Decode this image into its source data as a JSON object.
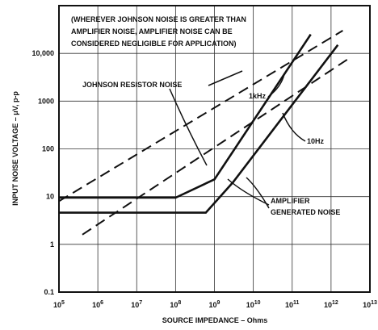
{
  "chart_data": {
    "type": "line",
    "title": "",
    "xlabel": "SOURCE IMPEDANCE – Ohms",
    "ylabel": "INPUT NOISE VOLTAGE – μV, p-p",
    "x_scale": "log",
    "y_scale": "log",
    "xlim": [
      100000,
      10000000000000
    ],
    "ylim": [
      0.1,
      100000
    ],
    "grid": true,
    "x_ticks": [
      {
        "value": 100000,
        "base": "10",
        "exp": "5"
      },
      {
        "value": 1000000,
        "base": "10",
        "exp": "6"
      },
      {
        "value": 10000000,
        "base": "10",
        "exp": "7"
      },
      {
        "value": 100000000,
        "base": "10",
        "exp": "8"
      },
      {
        "value": 1000000000,
        "base": "10",
        "exp": "9"
      },
      {
        "value": 10000000000,
        "base": "10",
        "exp": "10"
      },
      {
        "value": 100000000000,
        "base": "10",
        "exp": "11"
      },
      {
        "value": 1000000000000,
        "base": "10",
        "exp": "12"
      },
      {
        "value": 10000000000000,
        "base": "10",
        "exp": "13"
      }
    ],
    "y_ticks": [
      {
        "value": 0.1,
        "label": "0.1"
      },
      {
        "value": 1,
        "label": "1"
      },
      {
        "value": 10,
        "label": "10"
      },
      {
        "value": 100,
        "label": "100"
      },
      {
        "value": 1000,
        "label": "1000"
      },
      {
        "value": 10000,
        "label": "10,000"
      }
    ],
    "series": [
      {
        "style": "solid",
        "values_xy": [
          [
            100000,
            9.5
          ],
          [
            100000000,
            9.5
          ],
          [
            1000000000,
            23
          ],
          [
            300000000000,
            25000
          ]
        ]
      },
      {
        "style": "solid",
        "values_xy": [
          [
            100000,
            4.6
          ],
          [
            600000000,
            4.6
          ],
          [
            3000000000,
            20
          ],
          [
            1500000000000,
            15000
          ]
        ]
      },
      {
        "style": "dashed",
        "values_xy": [
          [
            100000,
            8
          ],
          [
            2000000000000,
            30000
          ]
        ]
      },
      {
        "style": "dashed",
        "values_xy": [
          [
            400000,
            1.6
          ],
          [
            3000000000000,
            8000
          ]
        ]
      }
    ],
    "annotations": [
      {
        "id": "note1",
        "text": "(WHEREVER JOHNSON NOISE IS GREATER THAN"
      },
      {
        "id": "note2",
        "text": "AMPLIFIER NOISE, AMPLIFIER NOISE CAN BE"
      },
      {
        "id": "note3",
        "text": "CONSIDERED NEGLIGIBLE FOR APPLICATION)"
      },
      {
        "id": "johnson",
        "text": "JOHNSON RESISTOR NOISE"
      },
      {
        "id": "khz",
        "text": "1kHz"
      },
      {
        "id": "hz",
        "text": "10Hz"
      },
      {
        "id": "amp1",
        "text": "AMPLIFIER"
      },
      {
        "id": "amp2",
        "text": "GENERATED NOISE"
      }
    ]
  }
}
